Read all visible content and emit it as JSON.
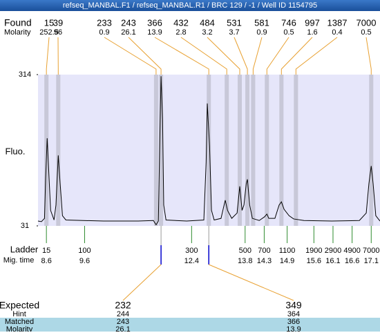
{
  "title": "refseq_MANBAL.F1 / refseq_MANBAL.R1 / BRC 129 / -1 / Well ID 1154795",
  "chart_data": {
    "type": "line",
    "y_label": "Fluo.",
    "color": "#000000",
    "background": "#e6e6fa",
    "x": [
      8.38,
      8.47,
      8.55,
      8.58,
      8.62,
      8.65,
      8.71,
      8.8,
      8.85,
      8.91,
      8.96,
      9.02,
      9.11,
      9.56,
      10.1,
      11.0,
      11.4,
      11.47,
      11.53,
      11.57,
      11.6,
      11.64,
      11.67,
      11.73,
      12.27,
      12.72,
      12.78,
      12.81,
      12.87,
      12.92,
      12.99,
      13.17,
      13.25,
      13.28,
      13.34,
      13.45,
      13.59,
      13.66,
      13.72,
      13.77,
      13.83,
      13.86,
      13.92,
      13.99,
      14.17,
      14.31,
      14.37,
      14.42,
      14.58,
      14.69,
      14.75,
      14.82,
      14.95,
      15.07,
      15.34,
      16.07,
      16.79,
      16.97,
      17.04,
      17.1,
      17.15,
      17.22,
      17.33
    ],
    "values": [
      40,
      39,
      45,
      120,
      195,
      150,
      60,
      42,
      70,
      163,
      110,
      50,
      42,
      41,
      40,
      40,
      41,
      33,
      40,
      200,
      311,
      230,
      70,
      42,
      40,
      42,
      150,
      260,
      180,
      60,
      42,
      45,
      70,
      79,
      60,
      45,
      55,
      105,
      60,
      70,
      110,
      118,
      70,
      45,
      41,
      48,
      53,
      45,
      45,
      70,
      76,
      62,
      50,
      44,
      41,
      40,
      41,
      55,
      110,
      143,
      110,
      50,
      40
    ],
    "xlim": [
      8.38,
      17.33
    ],
    "ylim": [
      31,
      314
    ],
    "yticks": [
      31,
      314
    ]
  },
  "found": {
    "label": "Found",
    "molarity_label": "Molarity",
    "band_color": "#c8c8d8",
    "line_color": "#e8a030",
    "peaks": [
      {
        "size": 15,
        "molarity": 252.5,
        "time": 8.6
      },
      {
        "size": 39,
        "molarity": 96,
        "time": 8.91
      },
      {
        "size": 233,
        "molarity": 0.9,
        "time": 11.47
      },
      {
        "size": 243,
        "molarity": 26.1,
        "time": 11.6
      },
      {
        "size": 366,
        "molarity": 13.9,
        "time": 12.85
      },
      {
        "size": 432,
        "molarity": 2.8,
        "time": 13.32
      },
      {
        "size": 484,
        "molarity": 3.2,
        "time": 13.66
      },
      {
        "size": 531,
        "molarity": 3.7,
        "time": 13.86
      },
      {
        "size": 581,
        "molarity": 0.9,
        "time": 14.01
      },
      {
        "size": 746,
        "molarity": 0.5,
        "time": 14.37
      },
      {
        "size": 997,
        "molarity": 1.6,
        "time": 14.75
      },
      {
        "size": 1387,
        "molarity": 0.4,
        "time": 15.13
      },
      {
        "size": 7000,
        "molarity": 0.5,
        "time": 17.1
      }
    ]
  },
  "ladder": {
    "label": "Ladder",
    "time_label": "Mig. time",
    "color": "#2e8b2e",
    "sizes": [
      15,
      100,
      300,
      500,
      700,
      1100,
      1900,
      2900,
      4900,
      7000
    ],
    "times": [
      8.6,
      9.6,
      12.4,
      13.8,
      14.3,
      14.9,
      15.6,
      16.1,
      16.6,
      17.1
    ]
  },
  "expected": {
    "labels": [
      "Expected",
      "Hint",
      "Matched",
      "Molarity"
    ],
    "marker_color": "#0000cc",
    "items": [
      {
        "expected": 232,
        "hint": 244,
        "matched": 243,
        "molarity": 26.1
      },
      {
        "expected": 349,
        "hint": 364,
        "matched": 366,
        "molarity": 13.9
      }
    ]
  }
}
